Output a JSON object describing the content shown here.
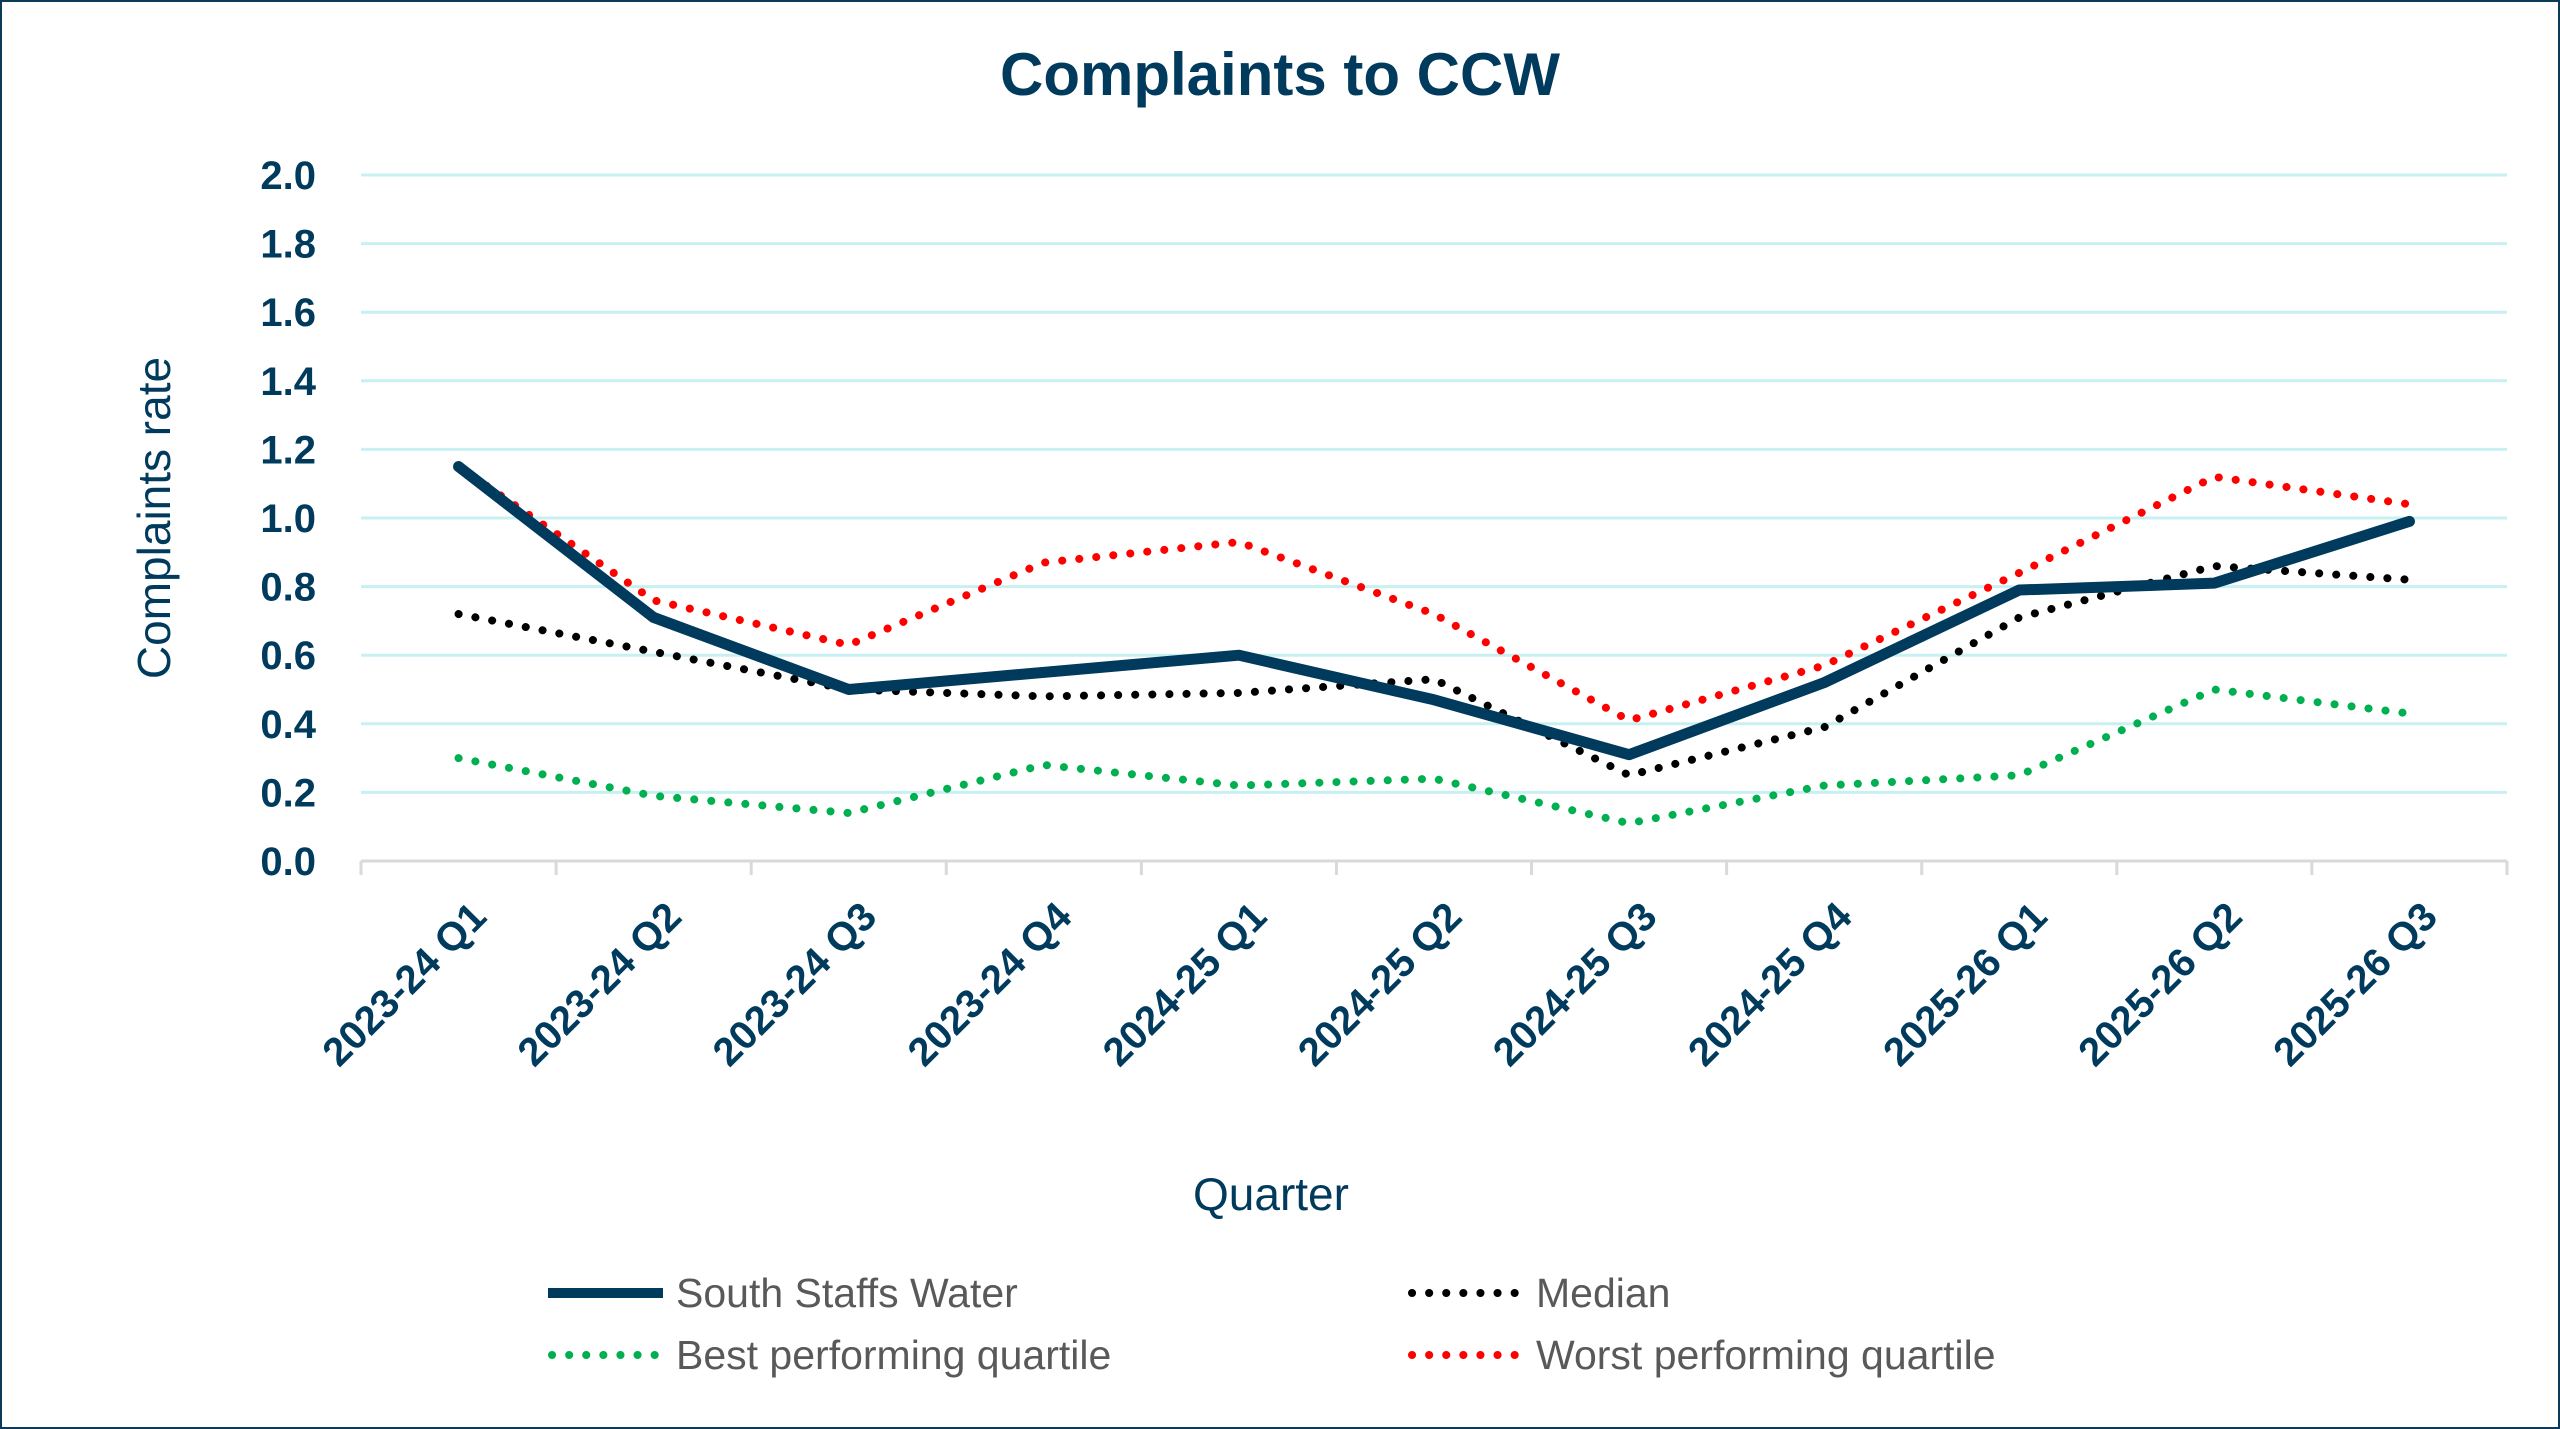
{
  "chart_data": {
    "type": "line",
    "title": "Complaints to CCW",
    "xlabel": "Quarter",
    "ylabel": "Complaints rate",
    "ylim": [
      0,
      2.0
    ],
    "yticks": [
      "0.0",
      "0.2",
      "0.4",
      "0.6",
      "0.8",
      "1.0",
      "1.2",
      "1.4",
      "1.6",
      "1.8",
      "2.0"
    ],
    "grid": true,
    "legend_position": "bottom",
    "categories": [
      "2023-24 Q1",
      "2023-24 Q2",
      "2023-24 Q3",
      "2023-24 Q4",
      "2024-25 Q1",
      "2024-25 Q2",
      "2024-25 Q3",
      "2024-25 Q4",
      "2025-26 Q1",
      "2025-26 Q2",
      "2025-26 Q3"
    ],
    "series": [
      {
        "name": "South Staffs Water",
        "color": "#003a5d",
        "style": "solid",
        "values": [
          1.15,
          0.71,
          0.5,
          0.55,
          0.6,
          0.47,
          0.31,
          0.52,
          0.79,
          0.81,
          0.99
        ]
      },
      {
        "name": "Median",
        "color": "#000000",
        "style": "dotted",
        "values": [
          0.72,
          0.61,
          0.5,
          0.48,
          0.49,
          0.53,
          0.25,
          0.39,
          0.71,
          0.86,
          0.82
        ]
      },
      {
        "name": "Best performing quartile",
        "color": "#00b050",
        "style": "dotted",
        "values": [
          0.3,
          0.19,
          0.14,
          0.28,
          0.22,
          0.24,
          0.11,
          0.22,
          0.25,
          0.5,
          0.43
        ]
      },
      {
        "name": "Worst performing quartile",
        "color": "#ff0000",
        "style": "dotted",
        "values": [
          1.15,
          0.76,
          0.63,
          0.87,
          0.93,
          0.72,
          0.41,
          0.57,
          0.84,
          1.12,
          1.04
        ]
      }
    ]
  }
}
